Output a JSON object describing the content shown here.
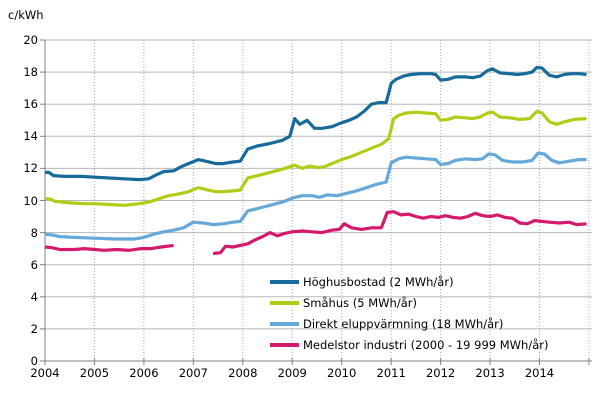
{
  "chart": {
    "y_unit_label": "c/kWh"
  },
  "colors": {
    "background": "#ffffff",
    "grid_horizontal": "#b8b8b8",
    "grid_vertical_dotted": "#a8a8a8",
    "axis": "#808080",
    "text": "#000000"
  },
  "chart_data": {
    "type": "line",
    "title": "",
    "ylabel": "c/kWh",
    "xlabel": "",
    "x_ticks": [
      2004,
      2005,
      2006,
      2007,
      2008,
      2009,
      2010,
      2011,
      2012,
      2013,
      2014
    ],
    "y_ticks": [
      0,
      2,
      4,
      6,
      8,
      10,
      12,
      14,
      16,
      18,
      20
    ],
    "x_range": [
      2004,
      2015.1
    ],
    "y_range": [
      0,
      20
    ],
    "grid": {
      "horizontal": "solid",
      "vertical": "dotted"
    },
    "legend_position": "inside-bottom-center",
    "series": [
      {
        "name": "Höghusbostad (2 MWh/år)",
        "color": "#176a9b",
        "segments": [
          [
            [
              2004.0,
              11.75
            ],
            [
              2004.08,
              11.75
            ],
            [
              2004.17,
              11.55
            ],
            [
              2004.4,
              11.5
            ],
            [
              2004.75,
              11.5
            ],
            [
              2005.0,
              11.45
            ],
            [
              2005.3,
              11.4
            ],
            [
              2005.6,
              11.35
            ],
            [
              2005.9,
              11.3
            ],
            [
              2006.1,
              11.35
            ],
            [
              2006.25,
              11.6
            ],
            [
              2006.4,
              11.8
            ],
            [
              2006.6,
              11.85
            ],
            [
              2006.75,
              12.1
            ],
            [
              2006.9,
              12.3
            ],
            [
              2007.1,
              12.55
            ],
            [
              2007.25,
              12.45
            ],
            [
              2007.45,
              12.3
            ],
            [
              2007.6,
              12.3
            ],
            [
              2007.8,
              12.4
            ],
            [
              2007.95,
              12.45
            ],
            [
              2008.1,
              13.2
            ],
            [
              2008.3,
              13.4
            ],
            [
              2008.55,
              13.55
            ],
            [
              2008.8,
              13.75
            ],
            [
              2008.95,
              14.0
            ],
            [
              2009.05,
              15.1
            ],
            [
              2009.15,
              14.75
            ],
            [
              2009.3,
              15.0
            ],
            [
              2009.45,
              14.5
            ],
            [
              2009.6,
              14.5
            ],
            [
              2009.8,
              14.6
            ],
            [
              2010.0,
              14.85
            ],
            [
              2010.15,
              15.0
            ],
            [
              2010.3,
              15.2
            ],
            [
              2010.45,
              15.55
            ],
            [
              2010.6,
              16.0
            ],
            [
              2010.75,
              16.1
            ],
            [
              2010.9,
              16.1
            ],
            [
              2011.0,
              17.3
            ],
            [
              2011.1,
              17.55
            ],
            [
              2011.25,
              17.75
            ],
            [
              2011.4,
              17.85
            ],
            [
              2011.6,
              17.9
            ],
            [
              2011.8,
              17.9
            ],
            [
              2011.9,
              17.85
            ],
            [
              2012.0,
              17.5
            ],
            [
              2012.15,
              17.55
            ],
            [
              2012.3,
              17.7
            ],
            [
              2012.5,
              17.7
            ],
            [
              2012.65,
              17.65
            ],
            [
              2012.8,
              17.75
            ],
            [
              2012.95,
              18.1
            ],
            [
              2013.05,
              18.2
            ],
            [
              2013.2,
              17.95
            ],
            [
              2013.4,
              17.9
            ],
            [
              2013.55,
              17.85
            ],
            [
              2013.7,
              17.9
            ],
            [
              2013.85,
              18.0
            ],
            [
              2013.95,
              18.3
            ],
            [
              2014.05,
              18.25
            ],
            [
              2014.2,
              17.8
            ],
            [
              2014.35,
              17.7
            ],
            [
              2014.5,
              17.85
            ],
            [
              2014.65,
              17.9
            ],
            [
              2014.8,
              17.9
            ],
            [
              2014.95,
              17.85
            ]
          ]
        ]
      },
      {
        "name": "Småhus (5 MWh/år)",
        "color": "#b3cb17",
        "segments": [
          [
            [
              2004.0,
              10.1
            ],
            [
              2004.1,
              10.1
            ],
            [
              2004.2,
              9.95
            ],
            [
              2004.5,
              9.85
            ],
            [
              2004.8,
              9.8
            ],
            [
              2005.0,
              9.8
            ],
            [
              2005.3,
              9.75
            ],
            [
              2005.6,
              9.7
            ],
            [
              2005.9,
              9.8
            ],
            [
              2006.1,
              9.9
            ],
            [
              2006.3,
              10.1
            ],
            [
              2006.5,
              10.3
            ],
            [
              2006.7,
              10.4
            ],
            [
              2006.9,
              10.55
            ],
            [
              2007.1,
              10.8
            ],
            [
              2007.3,
              10.65
            ],
            [
              2007.45,
              10.55
            ],
            [
              2007.6,
              10.55
            ],
            [
              2007.8,
              10.6
            ],
            [
              2007.95,
              10.65
            ],
            [
              2008.1,
              11.4
            ],
            [
              2008.3,
              11.55
            ],
            [
              2008.55,
              11.75
            ],
            [
              2008.8,
              11.95
            ],
            [
              2008.95,
              12.1
            ],
            [
              2009.05,
              12.2
            ],
            [
              2009.2,
              12.0
            ],
            [
              2009.35,
              12.15
            ],
            [
              2009.5,
              12.05
            ],
            [
              2009.65,
              12.1
            ],
            [
              2009.8,
              12.3
            ],
            [
              2010.0,
              12.55
            ],
            [
              2010.2,
              12.75
            ],
            [
              2010.4,
              13.0
            ],
            [
              2010.6,
              13.25
            ],
            [
              2010.8,
              13.5
            ],
            [
              2010.95,
              13.85
            ],
            [
              2011.05,
              15.1
            ],
            [
              2011.15,
              15.3
            ],
            [
              2011.3,
              15.45
            ],
            [
              2011.5,
              15.5
            ],
            [
              2011.7,
              15.45
            ],
            [
              2011.9,
              15.4
            ],
            [
              2012.0,
              15.0
            ],
            [
              2012.15,
              15.05
            ],
            [
              2012.3,
              15.2
            ],
            [
              2012.5,
              15.15
            ],
            [
              2012.65,
              15.1
            ],
            [
              2012.8,
              15.2
            ],
            [
              2012.95,
              15.45
            ],
            [
              2013.05,
              15.5
            ],
            [
              2013.2,
              15.2
            ],
            [
              2013.4,
              15.15
            ],
            [
              2013.6,
              15.05
            ],
            [
              2013.8,
              15.1
            ],
            [
              2013.95,
              15.55
            ],
            [
              2014.05,
              15.45
            ],
            [
              2014.2,
              14.9
            ],
            [
              2014.35,
              14.75
            ],
            [
              2014.5,
              14.9
            ],
            [
              2014.7,
              15.05
            ],
            [
              2014.95,
              15.1
            ]
          ]
        ]
      },
      {
        "name": "Direkt eluppvärmning (18 MWh/år)",
        "color": "#64a9da",
        "segments": [
          [
            [
              2004.0,
              7.9
            ],
            [
              2004.15,
              7.85
            ],
            [
              2004.3,
              7.75
            ],
            [
              2004.6,
              7.7
            ],
            [
              2005.0,
              7.65
            ],
            [
              2005.4,
              7.6
            ],
            [
              2005.8,
              7.6
            ],
            [
              2006.0,
              7.7
            ],
            [
              2006.2,
              7.9
            ],
            [
              2006.4,
              8.05
            ],
            [
              2006.6,
              8.15
            ],
            [
              2006.8,
              8.3
            ],
            [
              2007.0,
              8.65
            ],
            [
              2007.2,
              8.6
            ],
            [
              2007.4,
              8.5
            ],
            [
              2007.6,
              8.55
            ],
            [
              2007.8,
              8.65
            ],
            [
              2007.95,
              8.7
            ],
            [
              2008.1,
              9.35
            ],
            [
              2008.3,
              9.5
            ],
            [
              2008.55,
              9.7
            ],
            [
              2008.8,
              9.9
            ],
            [
              2009.0,
              10.15
            ],
            [
              2009.2,
              10.3
            ],
            [
              2009.4,
              10.3
            ],
            [
              2009.55,
              10.2
            ],
            [
              2009.7,
              10.35
            ],
            [
              2009.9,
              10.3
            ],
            [
              2010.1,
              10.45
            ],
            [
              2010.3,
              10.6
            ],
            [
              2010.5,
              10.8
            ],
            [
              2010.7,
              11.0
            ],
            [
              2010.9,
              11.15
            ],
            [
              2011.0,
              12.35
            ],
            [
              2011.15,
              12.6
            ],
            [
              2011.3,
              12.7
            ],
            [
              2011.5,
              12.65
            ],
            [
              2011.7,
              12.6
            ],
            [
              2011.9,
              12.55
            ],
            [
              2012.0,
              12.25
            ],
            [
              2012.15,
              12.3
            ],
            [
              2012.3,
              12.5
            ],
            [
              2012.5,
              12.6
            ],
            [
              2012.7,
              12.55
            ],
            [
              2012.85,
              12.6
            ],
            [
              2012.97,
              12.9
            ],
            [
              2013.1,
              12.85
            ],
            [
              2013.25,
              12.5
            ],
            [
              2013.45,
              12.4
            ],
            [
              2013.65,
              12.4
            ],
            [
              2013.85,
              12.5
            ],
            [
              2013.97,
              12.95
            ],
            [
              2014.1,
              12.9
            ],
            [
              2014.25,
              12.5
            ],
            [
              2014.4,
              12.35
            ],
            [
              2014.6,
              12.45
            ],
            [
              2014.8,
              12.55
            ],
            [
              2014.95,
              12.55
            ]
          ]
        ]
      },
      {
        "name": "Medelstor industri (2000 - 19 999 MWh/år)",
        "color": "#d51a6e",
        "data_gap": [
          2006.6,
          2007.4
        ],
        "segments": [
          [
            [
              2004.0,
              7.1
            ],
            [
              2004.15,
              7.05
            ],
            [
              2004.3,
              6.95
            ],
            [
              2004.6,
              6.95
            ],
            [
              2004.8,
              7.0
            ],
            [
              2005.0,
              6.95
            ],
            [
              2005.2,
              6.9
            ],
            [
              2005.45,
              6.95
            ],
            [
              2005.7,
              6.9
            ],
            [
              2005.95,
              7.0
            ],
            [
              2006.15,
              7.0
            ],
            [
              2006.35,
              7.1
            ],
            [
              2006.6,
              7.2
            ]
          ],
          [
            [
              2007.4,
              6.7
            ],
            [
              2007.55,
              6.75
            ],
            [
              2007.65,
              7.15
            ],
            [
              2007.8,
              7.1
            ],
            [
              2007.95,
              7.2
            ],
            [
              2008.1,
              7.3
            ],
            [
              2008.25,
              7.55
            ],
            [
              2008.4,
              7.75
            ],
            [
              2008.55,
              8.0
            ],
            [
              2008.7,
              7.8
            ],
            [
              2008.85,
              7.95
            ],
            [
              2009.0,
              8.05
            ],
            [
              2009.2,
              8.1
            ],
            [
              2009.4,
              8.05
            ],
            [
              2009.6,
              8.0
            ],
            [
              2009.8,
              8.15
            ],
            [
              2009.95,
              8.2
            ],
            [
              2010.05,
              8.55
            ],
            [
              2010.2,
              8.3
            ],
            [
              2010.4,
              8.2
            ],
            [
              2010.6,
              8.3
            ],
            [
              2010.8,
              8.3
            ],
            [
              2010.92,
              9.25
            ],
            [
              2011.05,
              9.3
            ],
            [
              2011.2,
              9.1
            ],
            [
              2011.35,
              9.15
            ],
            [
              2011.5,
              9.0
            ],
            [
              2011.65,
              8.9
            ],
            [
              2011.8,
              9.0
            ],
            [
              2011.95,
              8.95
            ],
            [
              2012.1,
              9.05
            ],
            [
              2012.25,
              8.95
            ],
            [
              2012.4,
              8.9
            ],
            [
              2012.55,
              9.0
            ],
            [
              2012.7,
              9.2
            ],
            [
              2012.85,
              9.05
            ],
            [
              2013.0,
              9.0
            ],
            [
              2013.15,
              9.1
            ],
            [
              2013.3,
              8.95
            ],
            [
              2013.45,
              8.9
            ],
            [
              2013.6,
              8.6
            ],
            [
              2013.75,
              8.55
            ],
            [
              2013.9,
              8.75
            ],
            [
              2014.05,
              8.7
            ],
            [
              2014.2,
              8.65
            ],
            [
              2014.4,
              8.6
            ],
            [
              2014.6,
              8.65
            ],
            [
              2014.75,
              8.5
            ],
            [
              2014.95,
              8.55
            ]
          ]
        ]
      }
    ]
  }
}
